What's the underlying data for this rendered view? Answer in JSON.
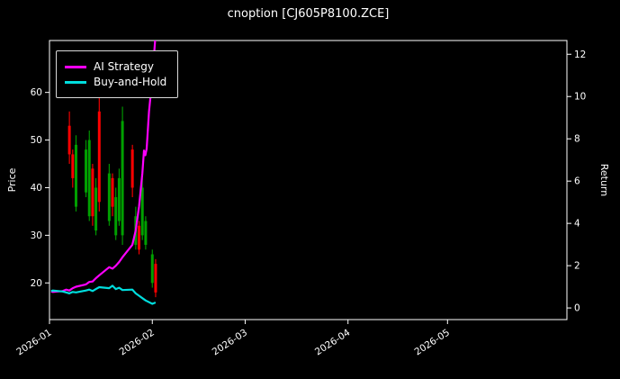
{
  "chart_data": {
    "type": "candlestick+line",
    "title": "cnoption [CJ605P8100.ZCE]",
    "ylabel_left": "Price",
    "ylabel_right": "Return",
    "grid": false,
    "legend_position": "upper-left",
    "colors": {
      "background": "#000000",
      "foreground": "#ffffff",
      "ai_strategy": "#ff00ff",
      "buy_and_hold": "#00dddd",
      "candle_up": "#00a000",
      "candle_down": "#ff0000"
    },
    "x_axis": {
      "tick_labels": [
        "2026-01",
        "2026-02",
        "2026-03",
        "2026-04",
        "2026-05"
      ],
      "tick_days": [
        0,
        31,
        59,
        90,
        120
      ],
      "range_days": [
        0,
        156
      ]
    },
    "price_axis": {
      "ticks": [
        20,
        30,
        40,
        50,
        60
      ],
      "range": [
        12.3,
        70.9
      ]
    },
    "return_axis": {
      "ticks": [
        0,
        2,
        4,
        6,
        8,
        10,
        12
      ],
      "range": [
        -0.55,
        12.65
      ]
    },
    "series": [
      {
        "name": "AI Strategy",
        "color": "#ff00ff",
        "axis": "price",
        "points": [
          [
            0.5,
            18.2
          ],
          [
            1,
            18.1
          ],
          [
            4,
            18.3
          ],
          [
            5,
            18.6
          ],
          [
            6,
            18.4
          ],
          [
            7,
            18.9
          ],
          [
            8,
            19.2
          ],
          [
            11,
            19.7
          ],
          [
            12,
            20.2
          ],
          [
            13,
            20.3
          ],
          [
            14,
            21.0
          ],
          [
            15,
            21.6
          ],
          [
            18,
            23.3
          ],
          [
            19,
            23.0
          ],
          [
            20,
            23.6
          ],
          [
            21,
            24.4
          ],
          [
            22,
            25.4
          ],
          [
            25,
            28.0
          ],
          [
            26,
            31.0
          ],
          [
            27,
            36.0
          ],
          [
            28,
            43.0
          ],
          [
            28.5,
            47.8
          ],
          [
            28.9,
            46.8
          ],
          [
            29.3,
            48.2
          ],
          [
            30,
            56.0
          ],
          [
            31,
            63.0
          ],
          [
            31.9,
            71.5
          ]
        ]
      },
      {
        "name": "Buy-and-Hold",
        "color": "#00dddd",
        "axis": "price",
        "points": [
          [
            0.5,
            18.3
          ],
          [
            1,
            18.4
          ],
          [
            4,
            18.2
          ],
          [
            5,
            18.0
          ],
          [
            6,
            17.8
          ],
          [
            7,
            18.1
          ],
          [
            8,
            18.0
          ],
          [
            11,
            18.4
          ],
          [
            12,
            18.6
          ],
          [
            13,
            18.3
          ],
          [
            14,
            18.7
          ],
          [
            15,
            19.1
          ],
          [
            18,
            18.9
          ],
          [
            19,
            19.4
          ],
          [
            20,
            18.7
          ],
          [
            21,
            19.0
          ],
          [
            22,
            18.5
          ],
          [
            25,
            18.6
          ],
          [
            26,
            17.8
          ],
          [
            27,
            17.3
          ],
          [
            28,
            16.8
          ],
          [
            29,
            16.3
          ],
          [
            31,
            15.6
          ],
          [
            32,
            15.9
          ]
        ]
      }
    ],
    "candles": {
      "up_color": "#00a000",
      "down_color": "#ff0000",
      "ohlc_format": [
        "day",
        "open",
        "high",
        "low",
        "close"
      ],
      "ohlc": [
        [
          6,
          53,
          56,
          45,
          47
        ],
        [
          7,
          47,
          48,
          40,
          42
        ],
        [
          8,
          36,
          51,
          35,
          49
        ],
        [
          11,
          39,
          50,
          38,
          48
        ],
        [
          12,
          34,
          52,
          33,
          50
        ],
        [
          13,
          44,
          45,
          32,
          34
        ],
        [
          14,
          31,
          42,
          30,
          40
        ],
        [
          15,
          56,
          59,
          35,
          37
        ],
        [
          18,
          33,
          45,
          32,
          43
        ],
        [
          19,
          42,
          43,
          34,
          36
        ],
        [
          20,
          30,
          40,
          29,
          38
        ],
        [
          21,
          33,
          44,
          32,
          42
        ],
        [
          22,
          30,
          57,
          28,
          54
        ],
        [
          25,
          48,
          49,
          38,
          40
        ],
        [
          26,
          28,
          36,
          27,
          34
        ],
        [
          27,
          32,
          33,
          26,
          27
        ],
        [
          28,
          30,
          42,
          29,
          40
        ],
        [
          29,
          28,
          34,
          27,
          33
        ],
        [
          31,
          20,
          27,
          19,
          26
        ],
        [
          32,
          24,
          25,
          17,
          18
        ]
      ]
    }
  }
}
